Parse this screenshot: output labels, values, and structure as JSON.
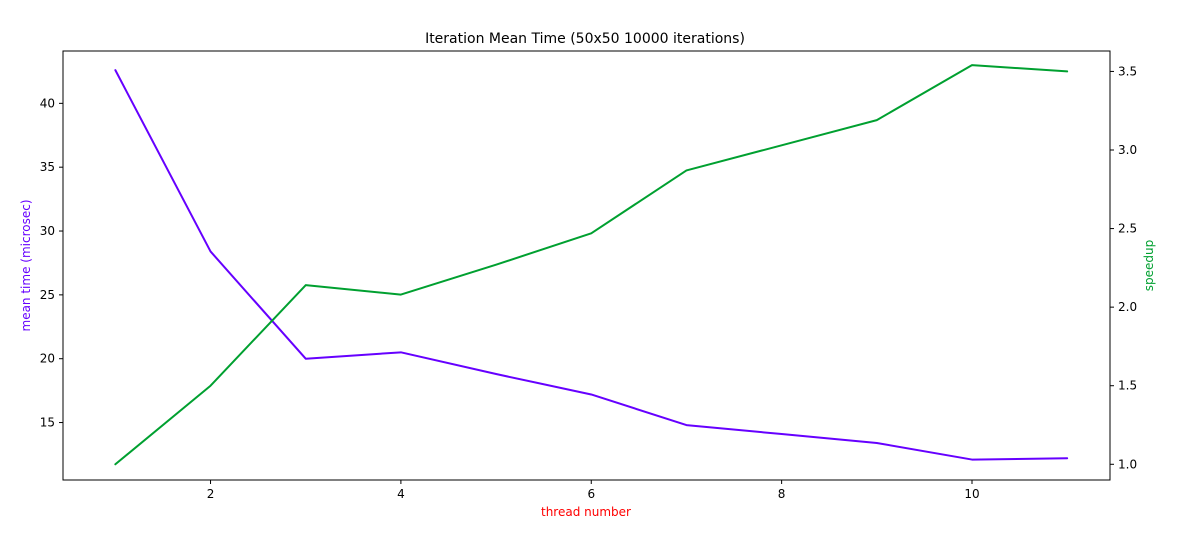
{
  "chart_data": {
    "type": "line",
    "title": "Iteration Mean Time (50x50 10000 iterations)",
    "xlabel": "thread number",
    "ylabel_left": "mean time (microsec)",
    "ylabel_right": "speedup",
    "x": [
      1,
      2,
      3,
      4,
      5,
      6,
      7,
      8,
      9,
      10,
      11
    ],
    "xlim": [
      0.45,
      11.45
    ],
    "ylim_left": [
      10.5,
      44.1
    ],
    "ylim_right": [
      0.9,
      3.63
    ],
    "xticks": [
      2,
      4,
      6,
      8,
      10
    ],
    "yticks_left": [
      15,
      20,
      25,
      30,
      35,
      40
    ],
    "yticks_right": [
      1.0,
      1.5,
      2.0,
      2.5,
      3.0,
      3.5
    ],
    "grid": false,
    "series": [
      {
        "name": "mean time (microsec)",
        "axis": "left",
        "color": "#6600ff",
        "values": [
          42.6,
          28.4,
          20.0,
          20.5,
          18.8,
          17.2,
          14.8,
          14.1,
          13.4,
          12.1,
          12.2
        ]
      },
      {
        "name": "speedup",
        "axis": "right",
        "color": "#00a030",
        "values": [
          1.0,
          1.5,
          2.14,
          2.08,
          2.27,
          2.47,
          2.87,
          3.03,
          3.19,
          3.54,
          3.5
        ]
      }
    ],
    "colors": {
      "xlabel": "#ff0000",
      "ylabel_left": "#6600ff",
      "ylabel_right": "#00a030",
      "axes": "#000000"
    }
  }
}
